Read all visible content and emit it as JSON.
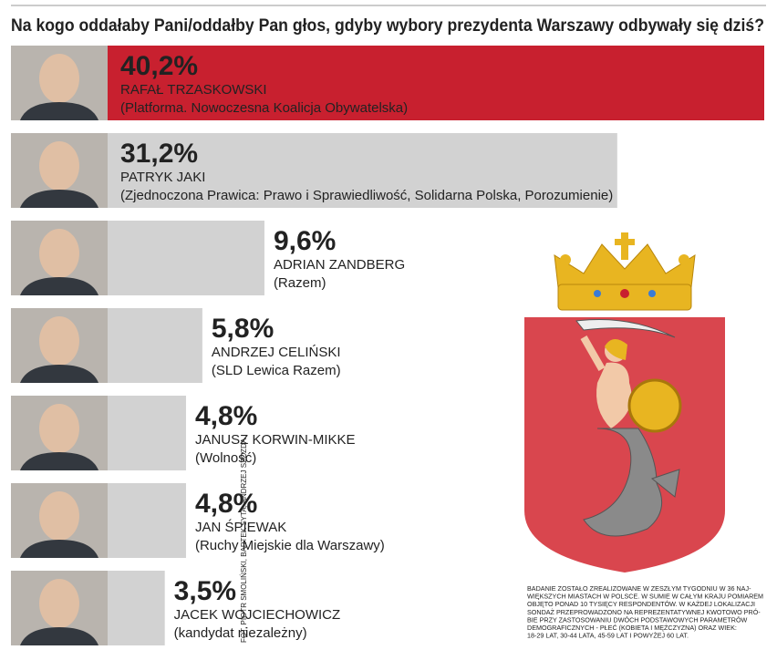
{
  "chart_data": {
    "type": "bar",
    "title": "Na kogo oddałaby Pani/oddałby Pan głos, gdyby wybory prezydenta Warszawy odbywały się dziś?",
    "categories": [
      "RAFAŁ TRZASKOWSKI",
      "PATRYK JAKI",
      "ADRIAN ZANDBERG",
      "ANDRZEJ CELIŃSKI",
      "JANUSZ KORWIN-MIKKE",
      "JAN ŚPIEWAK",
      "JACEK WOJCIECHOWICZ"
    ],
    "parties": [
      "(Platforma. Nowoczesna Koalicja Obywatelska)",
      "(Zjednoczona Prawica: Prawo i Sprawiedliwość, Solidarna Polska, Porozumienie)",
      "(Razem)",
      "(SLD Lewica Razem)",
      "(Wolność)",
      "(Ruchy Miejskie dla Warszawy)",
      "(kandydat niezależny)"
    ],
    "values": [
      40.2,
      31.2,
      9.6,
      5.8,
      4.8,
      4.8,
      3.5
    ],
    "value_labels": [
      "40,2%",
      "31,2%",
      "9,6%",
      "5,8%",
      "4,8%",
      "4,8%",
      "3,5%"
    ],
    "colors": [
      "#c8202f",
      "#d2d2d2",
      "#d2d2d2",
      "#d2d2d2",
      "#d2d2d2",
      "#d2d2d2",
      "#d2d2d2"
    ],
    "note": [
      "BADANIE ZOSTAŁO ZREALIZOWANE W ZESZŁYM TYGODNIU W 36 NAJ-",
      "WIĘKSZYCH MIASTACH W POLSCE. W SUMIE W CAŁYM KRAJU POMIAREM",
      "OBJĘTO PONAD 10 TYSIĘCY RESPONDENTÓW. W KAŻDEJ LOKALIZACJI",
      "SONDAŻ PRZEPROWADZONO NA REPREZENTATYWNEJ KWOTOWO PRÓ-",
      "BIE PRZY ZASTOSOWANIU DWÓCH PODSTAWOWYCH PARAMETRÓW",
      "DEMOGRAFICZNYCH - PŁEĆ (KOBIETA I MĘŻCZYZNA) ORAZ WIEK:",
      "18-29 LAT, 30-44 LATA, 45-59 LAT I POWYŻEJ 60 LAT."
    ],
    "credit": "FOT. PIOTR SMOLIŃSKI, BARTEK SYTA, ANDRZEJ SZOZDA"
  }
}
